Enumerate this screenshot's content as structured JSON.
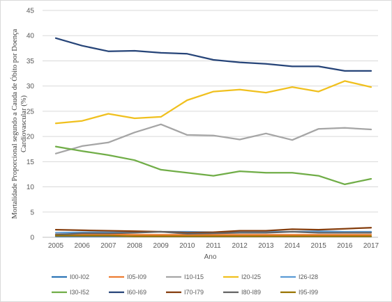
{
  "chart_data": {
    "type": "line",
    "ylabel_line1": "Mortalidade Proporcional segundo a Cauda de Óbito por Doença",
    "ylabel_line2": "Cardiovascular (%)",
    "xlabel": "Ano",
    "ylim": [
      0,
      45
    ],
    "yticks": [
      "0",
      "5",
      "10",
      "15",
      "20",
      "25",
      "30",
      "35",
      "40",
      "45"
    ],
    "x": [
      "2005",
      "2006",
      "2007",
      "2008",
      "2009",
      "2010",
      "2011",
      "2012",
      "2013",
      "2014",
      "2015",
      "2016",
      "2017"
    ],
    "grid": "horizontal",
    "legend_position": "bottom",
    "series": [
      {
        "name": "I00-I02",
        "color": "#2e75b6",
        "values": [
          0.2,
          0.2,
          0.2,
          0.2,
          0.2,
          0.2,
          0.2,
          0.2,
          0.2,
          0.2,
          0.2,
          0.2,
          0.2
        ]
      },
      {
        "name": "I05-I09",
        "color": "#ed7d31",
        "values": [
          0.6,
          0.6,
          0.6,
          0.5,
          0.5,
          0.5,
          0.5,
          0.5,
          0.5,
          0.5,
          0.5,
          0.5,
          0.5
        ]
      },
      {
        "name": "I10-I15",
        "color": "#a5a5a5",
        "values": [
          16.6,
          18.1,
          18.8,
          20.8,
          22.4,
          20.3,
          20.2,
          19.4,
          20.6,
          19.3,
          21.5,
          21.7,
          21.4
        ]
      },
      {
        "name": "I20-I25",
        "color": "#f0c01e",
        "values": [
          22.6,
          23.1,
          24.5,
          23.6,
          23.9,
          27.2,
          28.9,
          29.3,
          28.7,
          29.8,
          28.9,
          31.0,
          29.8
        ]
      },
      {
        "name": "I26-I28",
        "color": "#5b9bd5",
        "values": [
          0.9,
          1.0,
          1.0,
          1.0,
          1.1,
          1.1,
          1.0,
          1.1,
          1.1,
          1.1,
          1.2,
          1.1,
          1.1
        ]
      },
      {
        "name": "I30-I52",
        "color": "#70ad47",
        "values": [
          18.0,
          17.1,
          16.3,
          15.3,
          13.4,
          12.8,
          12.2,
          13.1,
          12.8,
          12.8,
          12.2,
          10.5,
          11.6
        ]
      },
      {
        "name": "I60-I69",
        "color": "#264478",
        "values": [
          39.5,
          38.0,
          36.9,
          37.0,
          36.6,
          36.4,
          35.2,
          34.7,
          34.4,
          33.9,
          33.9,
          33.0,
          33.0
        ]
      },
      {
        "name": "I70-I79",
        "color": "#843c0c",
        "values": [
          1.5,
          1.4,
          1.3,
          1.2,
          1.1,
          0.9,
          1.0,
          1.3,
          1.3,
          1.6,
          1.5,
          1.7,
          1.9
        ]
      },
      {
        "name": "I80-I89",
        "color": "#636363",
        "values": [
          0.5,
          0.8,
          0.8,
          0.9,
          1.1,
          0.7,
          0.8,
          0.9,
          0.9,
          1.1,
          0.9,
          0.9,
          0.9
        ]
      },
      {
        "name": "I95-I99",
        "color": "#997300",
        "values": [
          0.3,
          0.3,
          0.3,
          0.2,
          0.2,
          0.2,
          0.2,
          0.2,
          0.2,
          0.2,
          0.2,
          0.2,
          0.2
        ]
      }
    ]
  }
}
